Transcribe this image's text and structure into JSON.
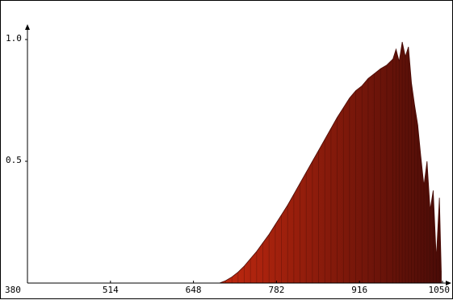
{
  "chart_data": {
    "type": "area",
    "title": "",
    "xlabel": "",
    "ylabel": "",
    "xlim": [
      380,
      1050
    ],
    "ylim": [
      0,
      1.0
    ],
    "x_ticks": [
      "380",
      "514",
      "648",
      "782",
      "916",
      "1050"
    ],
    "y_ticks": [
      "0.5",
      "1.0"
    ],
    "grid": false,
    "legend": "none",
    "colors": {
      "fill_light": "#c0280f",
      "fill_dark": "#4a0c07",
      "axis": "#000000"
    },
    "series": [
      {
        "x": [
          690,
          700,
          710,
          720,
          730,
          740,
          750,
          760,
          770,
          780,
          790,
          800,
          810,
          820,
          830,
          840,
          850,
          860,
          870,
          880,
          890,
          900,
          910,
          920,
          930,
          940,
          950,
          960,
          970,
          975,
          980,
          985,
          990,
          995,
          1000,
          1005,
          1010,
          1015,
          1020,
          1025,
          1030,
          1035,
          1040,
          1045,
          1048
        ],
        "y": [
          0.0,
          0.01,
          0.025,
          0.045,
          0.07,
          0.1,
          0.13,
          0.165,
          0.2,
          0.24,
          0.28,
          0.32,
          0.365,
          0.41,
          0.455,
          0.5,
          0.545,
          0.59,
          0.635,
          0.68,
          0.72,
          0.76,
          0.79,
          0.81,
          0.84,
          0.86,
          0.88,
          0.895,
          0.92,
          0.96,
          0.91,
          0.99,
          0.93,
          0.97,
          0.82,
          0.73,
          0.65,
          0.52,
          0.4,
          0.5,
          0.3,
          0.38,
          0.1,
          0.35,
          0.05
        ]
      }
    ]
  }
}
